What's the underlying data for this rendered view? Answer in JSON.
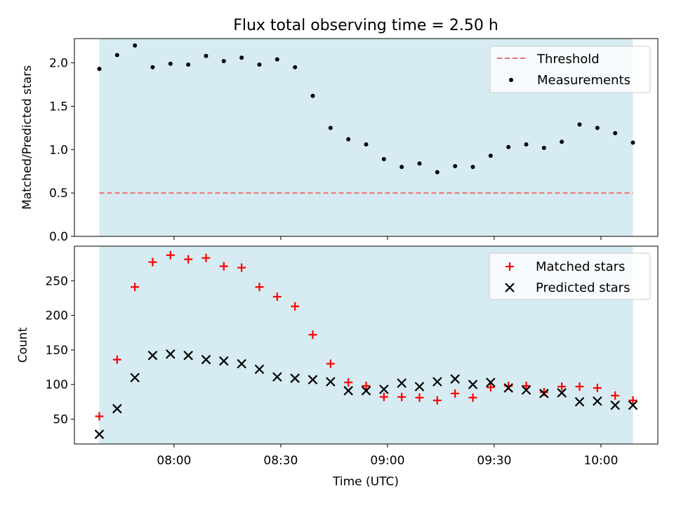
{
  "title": "Flux total observing time = 2.50 h",
  "colors": {
    "band": "#add8e6",
    "threshold": "#f07070",
    "measurement": "#000000",
    "matched": "#ff0000",
    "predicted": "#000000"
  },
  "chart_data": [
    {
      "type": "scatter",
      "panel": "top",
      "xlabel": "",
      "ylabel": "Matched/Predicted stars",
      "ylim": [
        0,
        2.28
      ],
      "yticks": [
        0.0,
        0.5,
        1.0,
        1.5,
        2.0
      ],
      "ytick_labels": [
        "0.0",
        "0.5",
        "1.0",
        "1.5",
        "2.0"
      ],
      "x_tick_labels_hidden": true,
      "band": {
        "from": "07:39",
        "to": "10:09"
      },
      "threshold": 0.5,
      "legend": {
        "position": "upper right",
        "entries": [
          "Threshold",
          "Measurements"
        ]
      },
      "series": [
        {
          "name": "Threshold",
          "style": "dashed-line",
          "y": 0.5
        },
        {
          "name": "Measurements",
          "style": "dot",
          "x": [
            "07:39",
            "07:44",
            "07:49",
            "07:54",
            "07:59",
            "08:04",
            "08:09",
            "08:14",
            "08:19",
            "08:24",
            "08:29",
            "08:34",
            "08:39",
            "08:44",
            "08:49",
            "08:54",
            "08:59",
            "09:04",
            "09:09",
            "09:14",
            "09:19",
            "09:24",
            "09:29",
            "09:34",
            "09:39",
            "09:44",
            "09:49",
            "09:54",
            "09:59",
            "10:04",
            "10:09"
          ],
          "y": [
            1.93,
            2.09,
            2.2,
            1.95,
            1.99,
            1.98,
            2.08,
            2.02,
            2.06,
            1.98,
            2.04,
            1.95,
            1.62,
            1.25,
            1.12,
            1.06,
            0.89,
            0.8,
            0.84,
            0.74,
            0.81,
            0.8,
            0.93,
            1.03,
            1.06,
            1.02,
            1.09,
            1.29,
            1.25,
            1.19,
            1.08
          ]
        }
      ]
    },
    {
      "type": "scatter",
      "panel": "bottom",
      "xlabel": "Time (UTC)",
      "ylabel": "Count",
      "ylim": [
        14,
        300
      ],
      "yticks": [
        50,
        100,
        150,
        200,
        250
      ],
      "ytick_labels": [
        "50",
        "100",
        "150",
        "200",
        "250"
      ],
      "xlim": [
        "07:32",
        "10:16"
      ],
      "xticks": [
        "08:00",
        "08:30",
        "09:00",
        "09:30",
        "10:00"
      ],
      "band": {
        "from": "07:39",
        "to": "10:09"
      },
      "legend": {
        "position": "upper right",
        "entries": [
          "Matched stars",
          "Predicted stars"
        ]
      },
      "series": [
        {
          "name": "Matched stars",
          "marker": "plus",
          "x": [
            "07:39",
            "07:44",
            "07:49",
            "07:54",
            "07:59",
            "08:04",
            "08:09",
            "08:14",
            "08:19",
            "08:24",
            "08:29",
            "08:34",
            "08:39",
            "08:44",
            "08:49",
            "08:54",
            "08:59",
            "09:04",
            "09:09",
            "09:14",
            "09:19",
            "09:24",
            "09:29",
            "09:34",
            "09:39",
            "09:44",
            "09:49",
            "09:54",
            "09:59",
            "10:04",
            "10:09"
          ],
          "y": [
            54,
            136,
            241,
            277,
            287,
            281,
            283,
            271,
            269,
            241,
            227,
            213,
            172,
            130,
            103,
            98,
            82,
            82,
            81,
            77,
            87,
            81,
            96,
            98,
            98,
            89,
            97,
            97,
            95,
            84,
            77
          ]
        },
        {
          "name": "Predicted stars",
          "marker": "x",
          "x": [
            "07:39",
            "07:44",
            "07:49",
            "07:54",
            "07:59",
            "08:04",
            "08:09",
            "08:14",
            "08:19",
            "08:24",
            "08:29",
            "08:34",
            "08:39",
            "08:44",
            "08:49",
            "08:54",
            "08:59",
            "09:04",
            "09:09",
            "09:14",
            "09:19",
            "09:24",
            "09:29",
            "09:34",
            "09:39",
            "09:44",
            "09:49",
            "09:54",
            "09:59",
            "10:04",
            "10:09"
          ],
          "y": [
            28,
            65,
            110,
            142,
            144,
            142,
            136,
            134,
            130,
            122,
            111,
            109,
            107,
            104,
            91,
            91,
            93,
            102,
            97,
            104,
            108,
            100,
            103,
            95,
            92,
            87,
            88,
            75,
            76,
            70,
            70
          ]
        }
      ]
    }
  ]
}
